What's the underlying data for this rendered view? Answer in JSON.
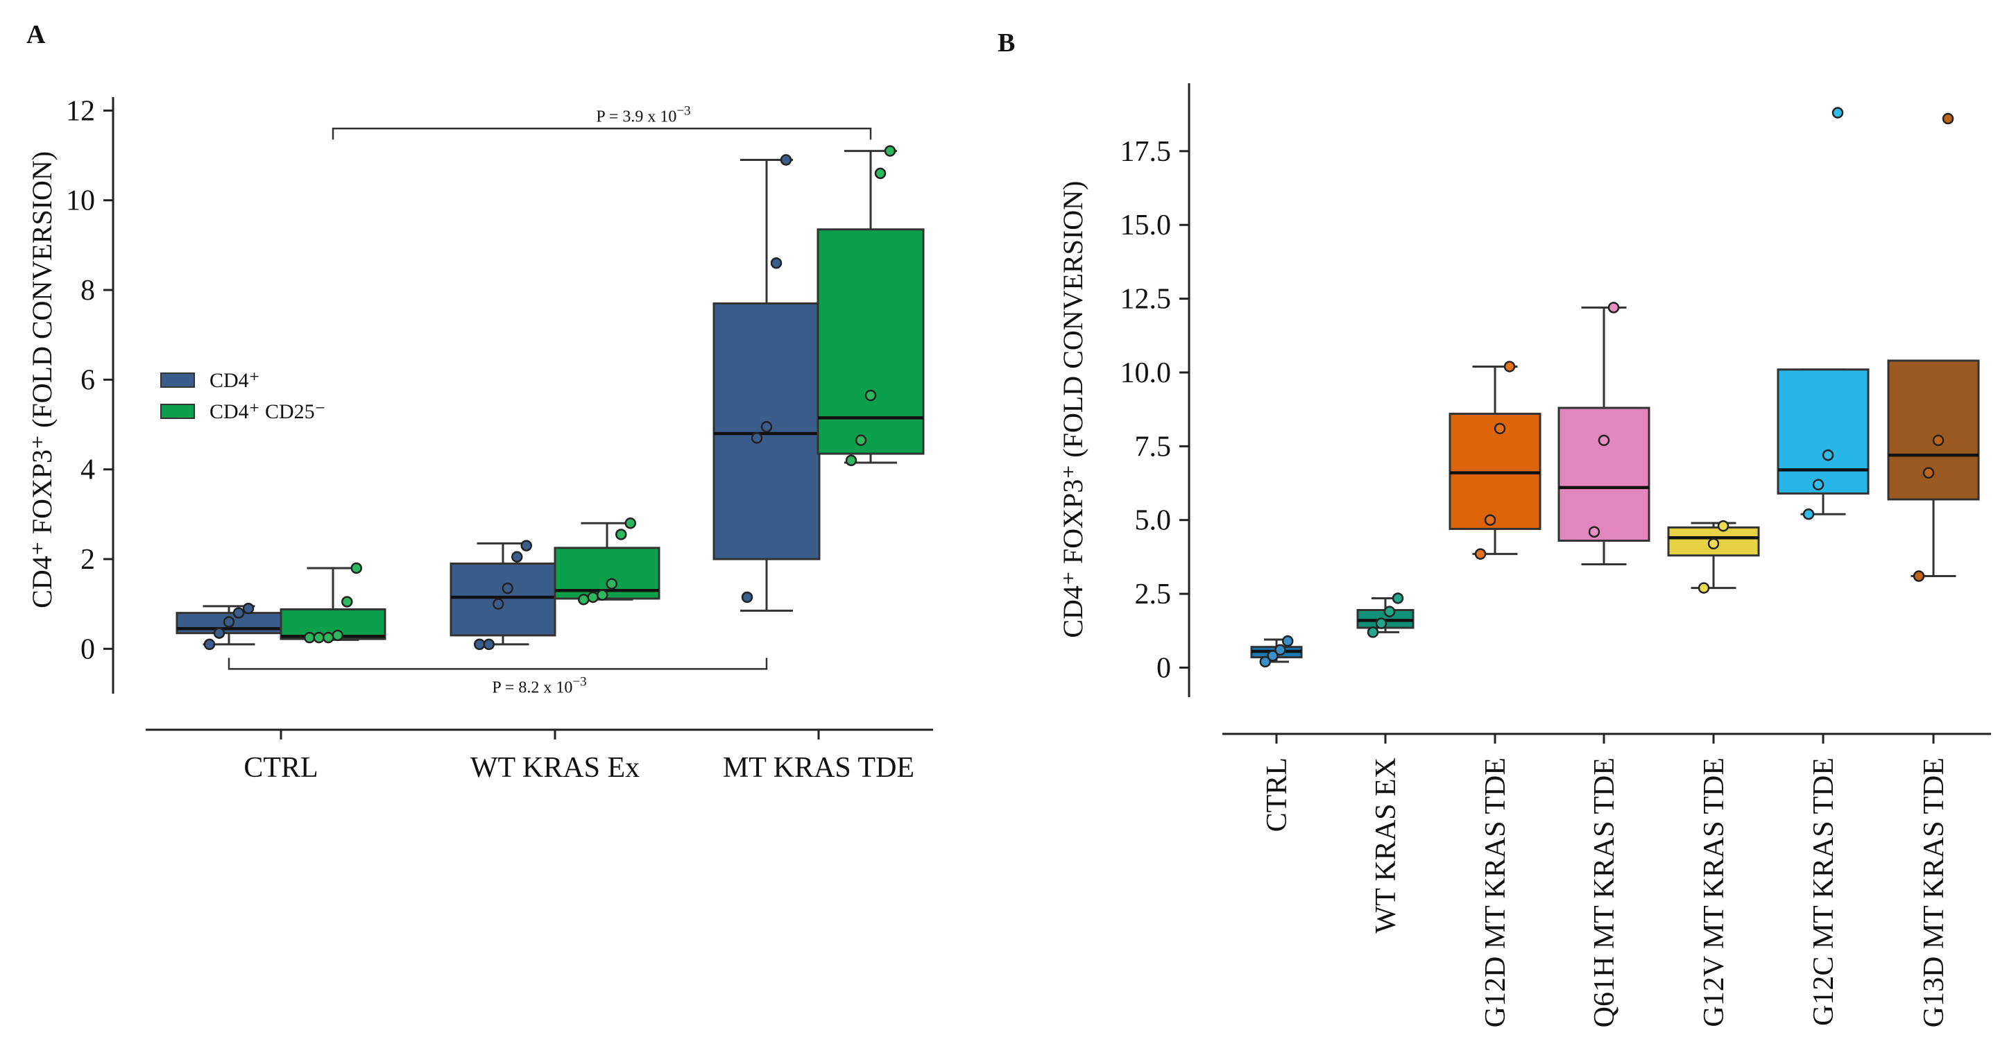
{
  "panel_labels": [
    "A",
    "B"
  ],
  "chart_data": [
    {
      "type": "box",
      "panel": "A",
      "ylabel": "CD4⁺ FOXP3⁺ (FOLD CONVERSION)",
      "ylim": [
        -1,
        12.3
      ],
      "yticks": [
        0,
        2,
        4,
        6,
        8,
        10,
        12
      ],
      "grid": false,
      "legend_position": "middle-left",
      "categories": [
        "CTRL",
        "WT KRAS Ex",
        "MT KRAS TDE"
      ],
      "series": [
        {
          "name": "CD4⁺",
          "color": "#3a5d8c",
          "point_color": "#3a5d8c",
          "boxes": [
            {
              "min": 0.1,
              "q1": 0.35,
              "median": 0.45,
              "q3": 0.8,
              "max": 0.95,
              "points": [
                0.1,
                0.35,
                0.6,
                0.8,
                0.9
              ]
            },
            {
              "min": 0.1,
              "q1": 0.3,
              "median": 1.15,
              "q3": 1.9,
              "max": 2.35,
              "points": [
                0.1,
                0.1,
                1.0,
                1.35,
                2.05,
                2.3
              ]
            },
            {
              "min": 0.85,
              "q1": 2.0,
              "median": 4.8,
              "q3": 7.7,
              "max": 10.9,
              "points": [
                1.15,
                4.7,
                4.95,
                8.6,
                10.9
              ]
            }
          ]
        },
        {
          "name": "CD4⁺ CD25⁻",
          "color": "#0ca04c",
          "point_color": "#2db85e",
          "boxes": [
            {
              "min": 0.2,
              "q1": 0.22,
              "median": 0.28,
              "q3": 0.88,
              "max": 1.8,
              "points": [
                0.25,
                0.25,
                0.25,
                0.3,
                1.05,
                1.8
              ]
            },
            {
              "min": 1.1,
              "q1": 1.12,
              "median": 1.3,
              "q3": 2.25,
              "max": 2.8,
              "points": [
                1.1,
                1.15,
                1.2,
                1.45,
                2.55,
                2.8
              ]
            },
            {
              "min": 4.15,
              "q1": 4.35,
              "median": 5.15,
              "q3": 9.35,
              "max": 11.1,
              "points": [
                4.2,
                4.65,
                5.65,
                10.6,
                11.1
              ]
            }
          ]
        }
      ],
      "annotations": [
        {
          "label": "P = 3.9 x 10",
          "exponent": "−3",
          "from_category": 0,
          "from_series": 1,
          "to_category": 2,
          "to_series": 1,
          "y": 11.6,
          "position": "above"
        },
        {
          "label": "P = 8.2 x 10",
          "exponent": "−3",
          "from_category": 0,
          "from_series": 0,
          "to_category": 2,
          "to_series": 0,
          "y": -0.45,
          "position": "below"
        }
      ]
    },
    {
      "type": "box",
      "panel": "B",
      "ylabel": "CD4⁺ FOXP3⁺ (FOLD CONVERSION)",
      "ylim": [
        -1.0,
        19.8
      ],
      "yticks": [
        "0",
        "2.5",
        "5.0",
        "7.5",
        "10.0",
        "12.5",
        "15.0",
        "17.5"
      ],
      "grid": false,
      "categories": [
        "CTRL",
        "WT KRAS EX",
        "G12D MT KRAS TDE",
        "Q61H MT KRAS TDE",
        "G12V MT KRAS TDE",
        "G12C MT KRAS TDE",
        "G13D MT KRAS TDE"
      ],
      "boxes": [
        {
          "color": "#1a78b4",
          "point_color": "#3a8fc8",
          "min": 0.2,
          "q1": 0.35,
          "median": 0.55,
          "q3": 0.7,
          "max": 0.95,
          "points": [
            0.2,
            0.4,
            0.6,
            0.9
          ]
        },
        {
          "color": "#119078",
          "point_color": "#21a88b",
          "min": 1.2,
          "q1": 1.35,
          "median": 1.6,
          "q3": 1.95,
          "max": 2.35,
          "points": [
            1.2,
            1.5,
            1.9,
            2.35
          ]
        },
        {
          "color": "#de640a",
          "point_color": "#e8701a",
          "min": 3.85,
          "q1": 4.7,
          "median": 6.6,
          "q3": 8.6,
          "max": 10.2,
          "points": [
            3.85,
            5.0,
            8.1,
            10.2
          ]
        },
        {
          "color": "#e287bd",
          "point_color": "#e890c4",
          "min": 3.5,
          "q1": 4.3,
          "median": 6.1,
          "q3": 8.8,
          "max": 12.2,
          "points": [
            4.6,
            7.7,
            12.2
          ]
        },
        {
          "color": "#e6d243",
          "point_color": "#eedb4e",
          "min": 2.7,
          "q1": 3.8,
          "median": 4.4,
          "q3": 4.75,
          "max": 4.9,
          "points": [
            2.7,
            4.2,
            4.8
          ]
        },
        {
          "color": "#27b6e8",
          "point_color": "#33bde9",
          "min": 5.2,
          "q1": 5.9,
          "median": 6.7,
          "q3": 10.1,
          "max": 10.1,
          "points": [
            5.2,
            6.2,
            7.2,
            18.8
          ]
        },
        {
          "color": "#9a5920",
          "point_color": "#c0641c",
          "min": 3.1,
          "q1": 5.7,
          "median": 7.2,
          "q3": 10.4,
          "max": 10.4,
          "points": [
            3.1,
            6.6,
            7.7,
            18.6
          ]
        }
      ]
    }
  ]
}
